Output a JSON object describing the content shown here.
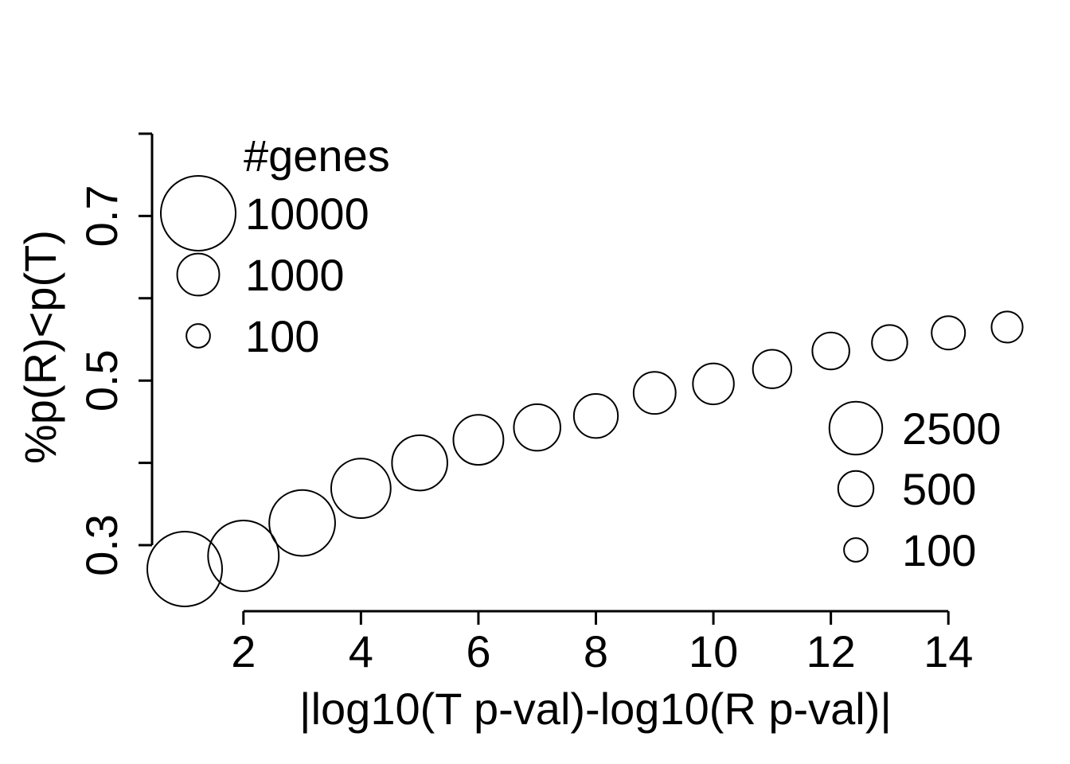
{
  "chart_data": {
    "type": "scatter",
    "title": "",
    "xlabel": "|log10(T p-val)-log10(R p-val)|",
    "ylabel": "%p(R)<p(T)",
    "xlim": [
      1,
      15
    ],
    "ylim": [
      0.28,
      0.78
    ],
    "x_ticks": [
      2,
      4,
      6,
      8,
      10,
      12,
      14
    ],
    "x_tick_labels": [
      "2",
      "4",
      "6",
      "8",
      "10",
      "12",
      "14"
    ],
    "y_ticks": [
      0.3,
      0.4,
      0.5,
      0.6,
      0.7,
      0.8
    ],
    "y_tick_labels": [
      "0.3",
      "",
      "0.5",
      "",
      "0.7",
      ""
    ],
    "series": [
      {
        "name": "points",
        "x": [
          1,
          2,
          3,
          4,
          5,
          6,
          7,
          8,
          9,
          10,
          11,
          12,
          13,
          14,
          15
        ],
        "y": [
          0.271,
          0.287,
          0.327,
          0.369,
          0.4,
          0.428,
          0.443,
          0.457,
          0.485,
          0.496,
          0.514,
          0.536,
          0.546,
          0.558,
          0.565
        ],
        "genes": [
          10000,
          8000,
          6000,
          4000,
          3000,
          2000,
          1500,
          1200,
          1000,
          900,
          700,
          600,
          500,
          400,
          300
        ]
      }
    ],
    "legends": [
      {
        "name": "genes-legend-left",
        "title": "#genes",
        "position": "top-left",
        "entries": [
          {
            "label": "10000",
            "genes": 10000
          },
          {
            "label": "1000",
            "genes": 1000
          },
          {
            "label": "100",
            "genes": 100
          }
        ]
      },
      {
        "name": "genes-legend-right",
        "title": "",
        "position": "bottom-right",
        "entries": [
          {
            "label": "2500",
            "genes": 2500
          },
          {
            "label": "500",
            "genes": 500
          },
          {
            "label": "100",
            "genes": 100
          }
        ]
      }
    ],
    "grid": false
  }
}
